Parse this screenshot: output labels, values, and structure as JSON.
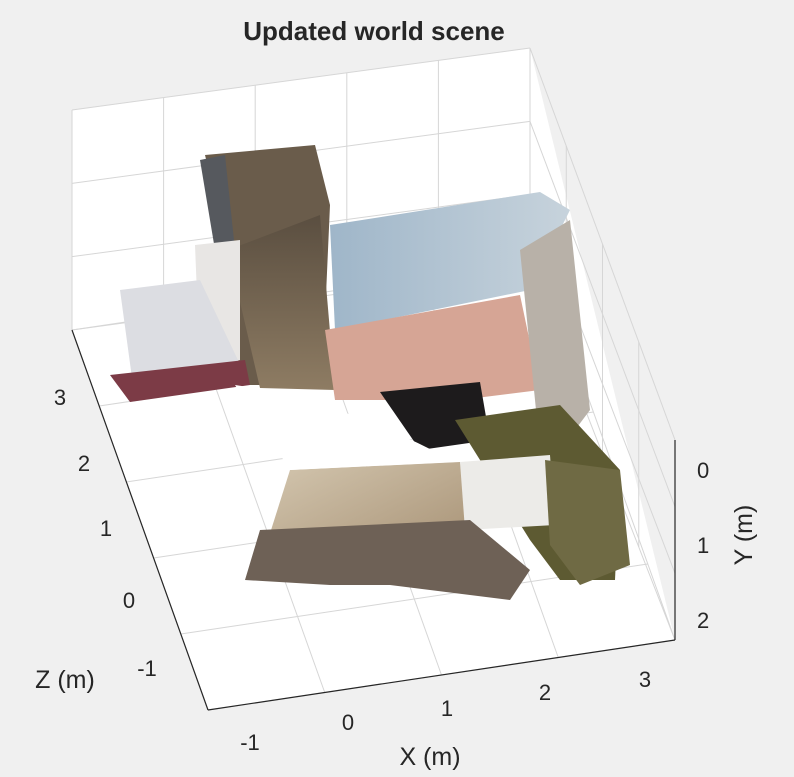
{
  "chart_data": {
    "type": "scatter",
    "subtype": "3d-point-cloud",
    "title": "Updated world scene",
    "xlabel": "X (m)",
    "ylabel": "Y (m)",
    "zlabel": "Z (m)",
    "x_ticks": [
      "-1",
      "0",
      "1",
      "2",
      "3"
    ],
    "y_ticks": [
      "0",
      "1",
      "2"
    ],
    "z_ticks": [
      "3",
      "2",
      "1",
      "0",
      "-1"
    ],
    "xlim": [
      -1.3,
      3.2
    ],
    "ylim": [
      -0.3,
      2.1
    ],
    "zlim": [
      -1.6,
      3.5
    ],
    "grid": true,
    "background": "#f0f0f0",
    "plot_background": "#ffffff"
  }
}
